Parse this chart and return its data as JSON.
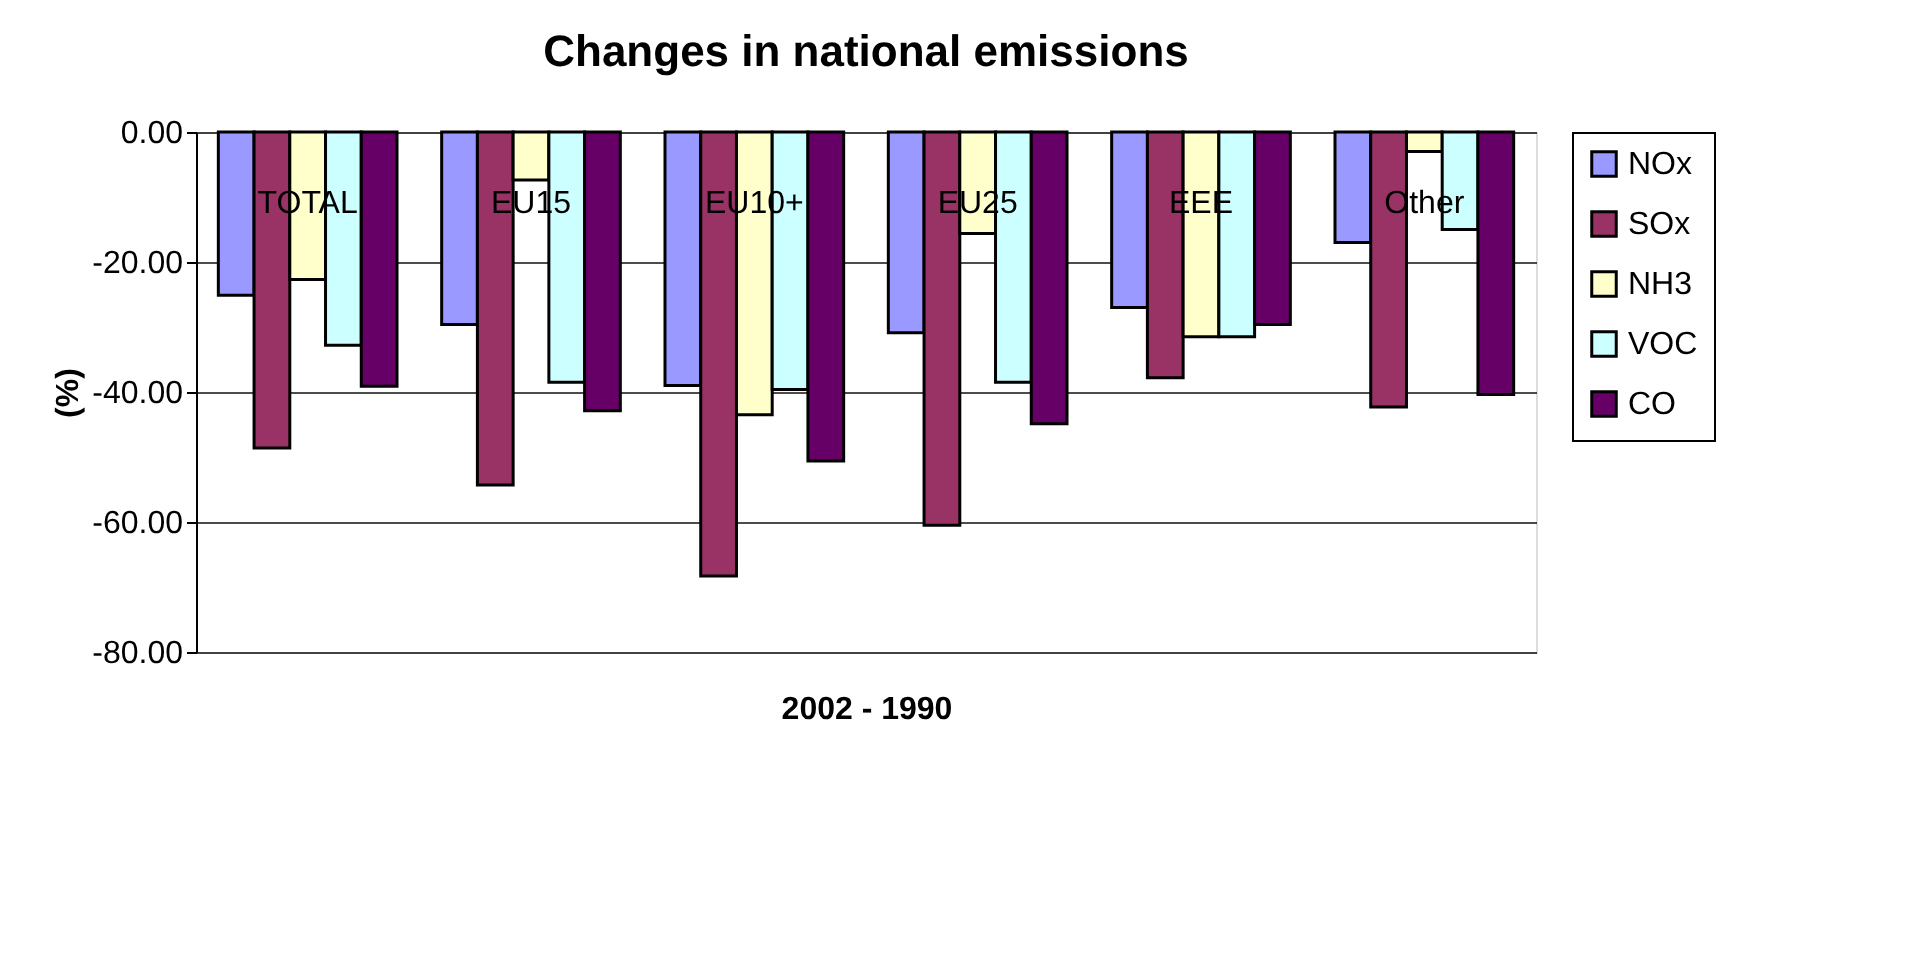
{
  "chart_data": {
    "type": "bar",
    "title": "Changes in national emissions",
    "xlabel": "2002 - 1990",
    "ylabel": "(%)",
    "categories": [
      "TOTAL",
      "EU15",
      "EU10+",
      "EU25",
      "EEE",
      "Other"
    ],
    "series": [
      {
        "name": "NOx",
        "color": "#9999ff",
        "values": [
          -25.1,
          -29.6,
          -39.0,
          -30.9,
          -27.0,
          -17.0
        ]
      },
      {
        "name": "SOx",
        "color": "#993366",
        "values": [
          -48.6,
          -54.3,
          -68.3,
          -60.5,
          -37.8,
          -42.3
        ]
      },
      {
        "name": "NH3",
        "color": "#ffffcc",
        "values": [
          -22.7,
          -7.4,
          -43.5,
          -15.6,
          -31.5,
          -3.0
        ]
      },
      {
        "name": "VOC",
        "color": "#ccffff",
        "values": [
          -32.8,
          -38.5,
          -39.6,
          -38.5,
          -31.5,
          -15.0
        ]
      },
      {
        "name": "CO",
        "color": "#660066",
        "values": [
          -39.1,
          -42.9,
          -50.6,
          -44.9,
          -29.6,
          -40.4
        ]
      }
    ],
    "ylim": [
      -80,
      0
    ],
    "yticks": [
      {
        "value": -80,
        "label": "-80.00"
      },
      {
        "value": -60,
        "label": "-60.00"
      },
      {
        "value": -40,
        "label": "-40.00"
      },
      {
        "value": -20,
        "label": "-20.00"
      },
      {
        "value": 0,
        "label": "0.00"
      }
    ],
    "grid": "y",
    "legend": "right"
  }
}
